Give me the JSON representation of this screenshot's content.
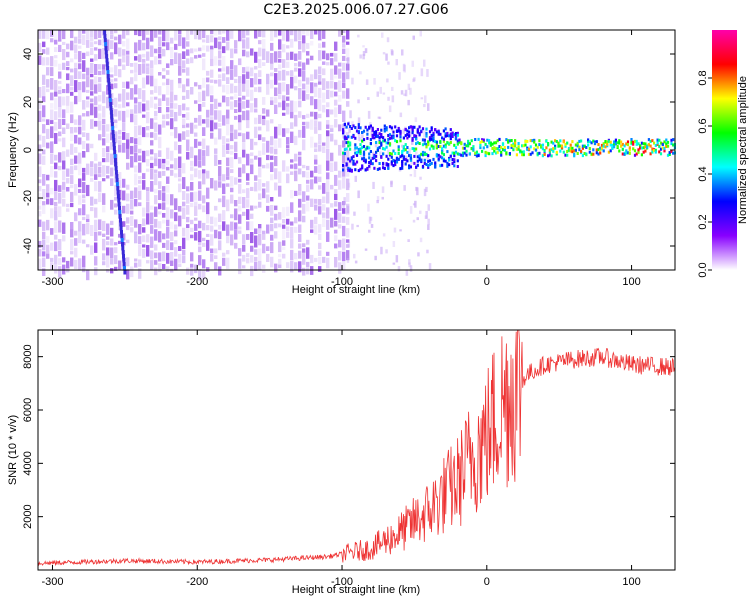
{
  "title": "C2E3.2025.006.07.27.G06",
  "chart_data": [
    {
      "type": "heatmap",
      "xlabel": "Height of straight line (km)",
      "ylabel": "Frequency (Hz)",
      "xlim": [
        -310,
        130
      ],
      "ylim": [
        -50,
        50
      ],
      "xticks": [
        -300,
        -200,
        -100,
        0,
        100
      ],
      "yticks": [
        -40,
        -20,
        0,
        20,
        40
      ],
      "colorbar": {
        "label": "Normalized spectral amplitude",
        "range": [
          0,
          1
        ],
        "ticks": [
          "0.0",
          "0.2",
          "0.4",
          "0.6",
          "0.8"
        ],
        "colormap": [
          "#ffffff",
          "#8800ff",
          "#0000ff",
          "#00ffff",
          "#00ff00",
          "#ffff00",
          "#ff0000",
          "#ff00aa"
        ]
      },
      "features": [
        {
          "name": "noise-field",
          "x_range": [
            -310,
            -95
          ],
          "freq_range": [
            -50,
            50
          ],
          "amplitude": 0.1
        },
        {
          "name": "diagonal-streak",
          "x_start": -264,
          "freq_start": 50,
          "x_end": -250,
          "freq_end": -50,
          "amplitude": 0.2
        },
        {
          "name": "signal-band",
          "x_range": [
            -100,
            130
          ],
          "freq_center": 1,
          "amplitude_range": [
            0.3,
            0.95
          ]
        }
      ]
    },
    {
      "type": "line",
      "xlabel": "Height of straight line (km)",
      "ylabel": "SNR (10 * v/v)",
      "xlim": [
        -310,
        130
      ],
      "ylim": [
        0,
        9000
      ],
      "xticks": [
        -300,
        -200,
        -100,
        0,
        100
      ],
      "yticks": [
        2000,
        4000,
        6000,
        8000
      ],
      "color": "#ee3333",
      "series_envelope": {
        "x": [
          -310,
          -250,
          -200,
          -150,
          -110,
          -80,
          -60,
          -40,
          -30,
          -20,
          -10,
          0,
          10,
          20,
          30,
          40,
          60,
          80,
          100,
          130
        ],
        "y": [
          250,
          350,
          300,
          380,
          500,
          800,
          1400,
          2200,
          2800,
          3300,
          4300,
          5000,
          6200,
          7000,
          7400,
          7700,
          7900,
          8000,
          7700,
          7600
        ]
      }
    }
  ]
}
